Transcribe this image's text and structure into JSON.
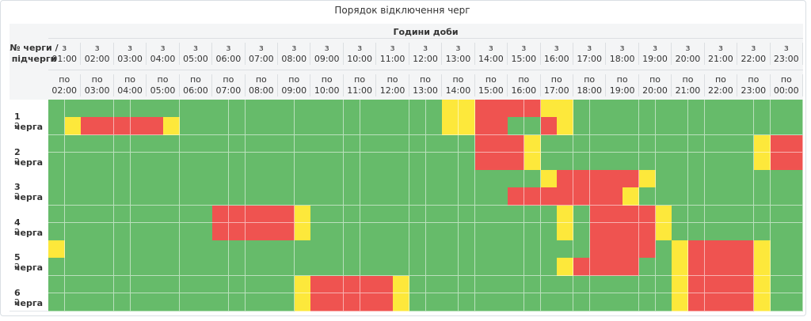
{
  "title": "Порядок відключення черг",
  "header": {
    "queue_col_label": "№ черги / підчерги",
    "group_title": "Години доби",
    "from_prefix": "з",
    "to_prefix": "по",
    "from_times": [
      "01:00",
      "02:00",
      "03:00",
      "04:00",
      "05:00",
      "06:00",
      "07:00",
      "08:00",
      "09:00",
      "10:00",
      "11:00",
      "12:00",
      "13:00",
      "14:00",
      "15:00",
      "16:00",
      "17:00",
      "18:00",
      "19:00",
      "20:00",
      "21:00",
      "22:00",
      "23:00"
    ],
    "to_times": [
      "02:00",
      "03:00",
      "04:00",
      "05:00",
      "06:00",
      "07:00",
      "08:00",
      "09:00",
      "10:00",
      "11:00",
      "12:00",
      "13:00",
      "14:00",
      "15:00",
      "16:00",
      "17:00",
      "18:00",
      "19:00",
      "20:00",
      "21:00",
      "22:00",
      "23:00",
      "00:00"
    ]
  },
  "colors": {
    "on": "#66bb6a",
    "off": "#ef5350",
    "maybe": "#fde83b"
  },
  "queues": [
    {
      "label": "1 черга",
      "sub": "2",
      "rows": [
        "GGGGGGGGGGGGGGGGGGGGGGGGGGGGGGGGGGGGGGGGGGGGGGGGGGGGGGGGGGGGGGGGGGGGGGGGGGGGGGGGGGGGGGYRRRRRRRRRRRRYYGGGGGGGGGGGGGGGGGGGGGGGGGGGGGGGGGGGGGGGGGGGGGGGGGGGGGGGGGGG",
        "YRRRRRRRRRRRRRRRRRRRRRRRRYGGGGGGGGGGGGGGGGGGGGGGGGGGGGGGGGGGGGGGGGGGGGGGGGGGGGGGGGGGGGYRRRRRRRRRGGGGGRYYGGGGGGGGGGGGGGGGGGGGGGGGGGGGGGGGGGGGGGGGGGGGGGGGGGGGGGGGGGGG"
      ]
    },
    {
      "label": "2 черга",
      "sub": "2",
      "rows": [
        "GGGGGGGGGGGGGGGGGGGGGGGGGGGGGGGGGGGGGGGGGGGGGGGGGGGGGGGGGGGGGGGGGGGGGGGGGGGGGGGGGGGGGGGGGGGGGGRRRRRRRRYGGGGGGGGGGGGGGGGGGGGGGGGGGGGGGGGGGGGGGGGGGGGGGGGGGGGGGYRRRRRRRRRRRRR",
        "GGGGGGGGGGGGGGGGGGGGGGGGGGGGGGGGGGGGGGGGGGGGGGGGGGGGGGGGGGGGGGGGGGGGGGGGGGGGGGGGGGGGGGGGGGGGGGRRRRRRRRYGGGGGGGGGGGGGGGGGGGGGGGGGGGGGGGGGGGGGGGGGGGGGGGGGGGGGGYRRRRRRRRRRRRR"
      ]
    }
  ]
}
